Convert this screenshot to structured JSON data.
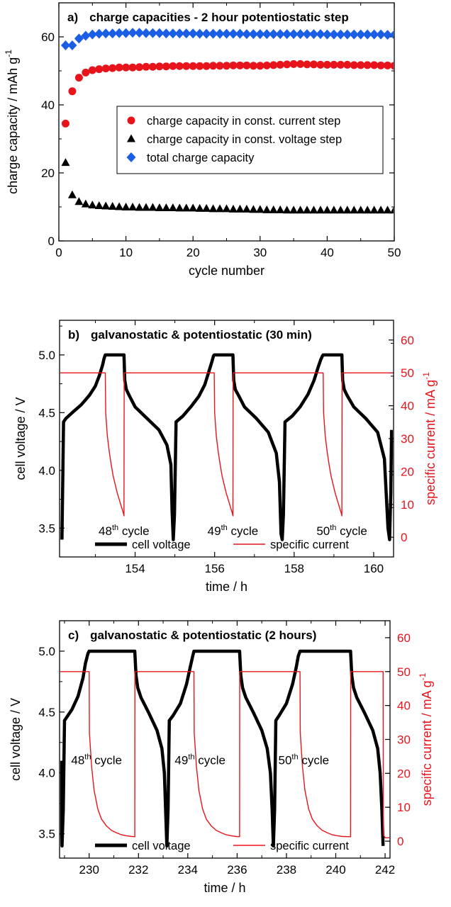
{
  "chart_data": [
    {
      "type": "scatter",
      "panel_label": "a)",
      "title": "charge capacities - 2 hour potentiostatic step",
      "xlabel": "cycle number",
      "ylabel": "charge capacity / mAh g",
      "ylabel_sup": "-1",
      "xlim": [
        0,
        50
      ],
      "ylim": [
        0,
        70
      ],
      "xticks": [
        0,
        10,
        20,
        30,
        40,
        50
      ],
      "yticks": [
        0,
        20,
        40,
        60
      ],
      "legend_position": "center-right",
      "grid": false,
      "series": [
        {
          "name": "charge capacity in const. current step",
          "marker": "circle",
          "color": "#e8141c",
          "x": [
            1,
            2,
            3,
            4,
            5,
            6,
            7,
            8,
            9,
            10,
            11,
            12,
            13,
            14,
            15,
            16,
            17,
            18,
            19,
            20,
            21,
            22,
            23,
            24,
            25,
            26,
            27,
            28,
            29,
            30,
            31,
            32,
            33,
            34,
            35,
            36,
            37,
            38,
            39,
            40,
            41,
            42,
            43,
            44,
            45,
            46,
            47,
            48,
            49,
            50
          ],
          "y": [
            34.5,
            44,
            48,
            49.5,
            50.2,
            50.5,
            50.7,
            50.8,
            51,
            51,
            51,
            51.1,
            51.2,
            51.2,
            51.3,
            51.3,
            51.4,
            51.4,
            51.4,
            51.4,
            51.4,
            51.4,
            51.5,
            51.5,
            51.5,
            51.6,
            51.6,
            51.6,
            51.5,
            51.5,
            51.6,
            51.7,
            51.8,
            51.9,
            52,
            52,
            51.9,
            51.9,
            51.8,
            51.8,
            51.8,
            51.8,
            51.8,
            51.7,
            51.7,
            51.7,
            51.7,
            51.6,
            51.6,
            51.5
          ]
        },
        {
          "name": "charge capacity in const. voltage step",
          "marker": "triangle",
          "color": "#000000",
          "x": [
            1,
            2,
            3,
            4,
            5,
            6,
            7,
            8,
            9,
            10,
            11,
            12,
            13,
            14,
            15,
            16,
            17,
            18,
            19,
            20,
            21,
            22,
            23,
            24,
            25,
            26,
            27,
            28,
            29,
            30,
            31,
            32,
            33,
            34,
            35,
            36,
            37,
            38,
            39,
            40,
            41,
            42,
            43,
            44,
            45,
            46,
            47,
            48,
            49,
            50
          ],
          "y": [
            23,
            13.5,
            11.5,
            10.8,
            10.5,
            10.3,
            10.2,
            10.1,
            10,
            9.9,
            9.9,
            9.8,
            9.8,
            9.8,
            9.7,
            9.7,
            9.7,
            9.6,
            9.6,
            9.6,
            9.5,
            9.5,
            9.4,
            9.4,
            9.4,
            9.3,
            9.3,
            9.3,
            9.2,
            9.2,
            9.1,
            9.1,
            9.1,
            9,
            9,
            9,
            9,
            9,
            9,
            9,
            9,
            9,
            9,
            9,
            9,
            9,
            9,
            9,
            9,
            9
          ]
        },
        {
          "name": "total charge capacity",
          "marker": "diamond",
          "color": "#1a5ee6",
          "x": [
            1,
            2,
            3,
            4,
            5,
            6,
            7,
            8,
            9,
            10,
            11,
            12,
            13,
            14,
            15,
            16,
            17,
            18,
            19,
            20,
            21,
            22,
            23,
            24,
            25,
            26,
            27,
            28,
            29,
            30,
            31,
            32,
            33,
            34,
            35,
            36,
            37,
            38,
            39,
            40,
            41,
            42,
            43,
            44,
            45,
            46,
            47,
            48,
            49,
            50
          ],
          "y": [
            57.5,
            57.5,
            59.5,
            60.3,
            60.7,
            60.9,
            61,
            61,
            61.1,
            61.1,
            61.2,
            61.2,
            61.1,
            61.1,
            61.1,
            61,
            61,
            61,
            61,
            61,
            60.9,
            60.9,
            60.9,
            60.9,
            60.9,
            60.9,
            60.9,
            60.8,
            60.8,
            60.8,
            60.8,
            60.8,
            60.8,
            60.8,
            60.8,
            60.8,
            60.8,
            60.8,
            60.8,
            60.7,
            60.7,
            60.7,
            60.7,
            60.7,
            60.7,
            60.7,
            60.7,
            60.7,
            60.6,
            60.6
          ]
        }
      ]
    },
    {
      "type": "line",
      "panel_label": "b)",
      "title": "galvanostatic & potentiostatic (30 min)",
      "xlabel": "time / h",
      "ylabel": "cell voltage / V",
      "y2label": "specific current / mA g",
      "y2label_sup": "-1",
      "xlim": [
        152.1,
        160.5
      ],
      "ylim": [
        3.25,
        5.3
      ],
      "y2lim": [
        -6,
        66
      ],
      "xticks": [
        154,
        156,
        158,
        160
      ],
      "yticks": [
        3.5,
        4.0,
        4.5,
        5.0
      ],
      "y2ticks": [
        0,
        10,
        20,
        30,
        40,
        50,
        60
      ],
      "legend_position": "bottom",
      "grid": false,
      "cycle_labels": [
        {
          "num": "48",
          "sup": "th",
          "text": " cycle",
          "x": 153.72,
          "y": 3.44
        },
        {
          "num": "49",
          "sup": "th",
          "text": " cycle",
          "x": 156.46,
          "y": 3.44
        },
        {
          "num": "50",
          "sup": "th",
          "text": " cycle",
          "x": 159.2,
          "y": 3.44
        }
      ],
      "series": [
        {
          "name": "cell voltage",
          "axis": "left",
          "color": "#000000",
          "x": [
            152.16,
            152.2,
            152.26,
            152.42,
            152.65,
            152.85,
            153.0,
            153.1,
            153.18,
            153.22,
            153.25,
            153.72,
            153.74,
            153.78,
            153.85,
            154.0,
            154.3,
            154.6,
            154.8,
            154.9,
            154.93,
            154.96,
            154.99,
            155.03,
            155.2,
            155.4,
            155.6,
            155.75,
            155.85,
            155.93,
            155.97,
            155.99,
            156.46,
            156.48,
            156.52,
            156.6,
            156.75,
            157.05,
            157.35,
            157.55,
            157.63,
            157.67,
            157.7,
            157.73,
            157.77,
            157.95,
            158.15,
            158.35,
            158.5,
            158.6,
            158.67,
            158.71,
            158.73,
            159.2,
            159.22,
            159.26,
            159.33,
            159.5,
            159.8,
            160.1,
            160.27,
            160.36,
            160.4,
            160.43,
            160.45
          ],
          "y": [
            3.4,
            4.42,
            4.45,
            4.5,
            4.57,
            4.65,
            4.73,
            4.82,
            4.91,
            4.97,
            5.0,
            5.0,
            4.78,
            4.7,
            4.65,
            4.55,
            4.45,
            4.35,
            4.22,
            4.05,
            3.65,
            3.4,
            3.62,
            4.42,
            4.47,
            4.55,
            4.64,
            4.74,
            4.85,
            4.94,
            4.99,
            5.0,
            5.0,
            4.78,
            4.7,
            4.65,
            4.55,
            4.45,
            4.33,
            4.15,
            3.9,
            3.45,
            3.4,
            3.62,
            4.42,
            4.47,
            4.55,
            4.66,
            4.78,
            4.89,
            4.96,
            4.99,
            5.0,
            5.0,
            4.78,
            4.7,
            4.65,
            4.55,
            4.45,
            4.33,
            4.1,
            3.5,
            3.4,
            3.8,
            4.35
          ]
        },
        {
          "name": "specific current",
          "axis": "right",
          "color": "#e8141c",
          "x": [
            152.1,
            153.25,
            153.26,
            153.3,
            153.35,
            153.4,
            153.45,
            153.5,
            153.55,
            153.6,
            153.65,
            153.7,
            153.72,
            153.725,
            153.73,
            155.99,
            156.0,
            156.04,
            156.09,
            156.14,
            156.19,
            156.24,
            156.29,
            156.34,
            156.39,
            156.44,
            156.46,
            156.465,
            156.47,
            158.73,
            158.74,
            158.78,
            158.83,
            158.88,
            158.93,
            158.98,
            159.03,
            159.08,
            159.13,
            159.18,
            159.2,
            159.205,
            159.21,
            160.5
          ],
          "y": [
            50,
            50,
            38,
            31,
            26,
            22,
            18.5,
            16,
            13.5,
            11.5,
            9.5,
            7.5,
            6.5,
            50,
            50,
            50,
            38,
            31,
            26,
            22,
            18.5,
            16,
            13.5,
            11.5,
            9.5,
            7.5,
            6.5,
            50,
            50,
            50,
            38,
            31,
            26,
            22,
            18.5,
            16,
            13.5,
            11.5,
            9.5,
            7.5,
            6.5,
            50,
            50,
            50
          ]
        }
      ]
    },
    {
      "type": "line",
      "panel_label": "c)",
      "title": "galvanostatic & potentiostatic (2 hours)",
      "xlabel": "time / h",
      "ylabel": "cell voltage / V",
      "y2label": "specific current / mA g",
      "y2label_sup": "-1",
      "xlim": [
        228.8,
        242.2
      ],
      "ylim": [
        3.3,
        5.25
      ],
      "y2lim": [
        -5,
        65
      ],
      "xticks": [
        230,
        232,
        234,
        236,
        238,
        240,
        242
      ],
      "yticks": [
        3.5,
        4.0,
        4.5,
        5.0
      ],
      "y2ticks": [
        0,
        10,
        20,
        30,
        40,
        50,
        60
      ],
      "legend_position": "bottom",
      "grid": false,
      "cycle_labels": [
        {
          "num": "48",
          "sup": "th",
          "text": " cycle",
          "x": 230.3,
          "y": 4.07
        },
        {
          "num": "49",
          "sup": "th",
          "text": " cycle",
          "x": 234.5,
          "y": 4.07
        },
        {
          "num": "50",
          "sup": "th",
          "text": " cycle",
          "x": 238.7,
          "y": 4.07
        }
      ],
      "series": [
        {
          "name": "cell voltage",
          "axis": "left",
          "color": "#000000",
          "x": [
            228.85,
            228.9,
            228.95,
            229.0,
            229.1,
            229.3,
            229.55,
            229.75,
            229.85,
            229.95,
            230.0,
            231.85,
            231.9,
            231.97,
            232.1,
            232.4,
            232.75,
            232.95,
            233.05,
            233.1,
            233.15,
            233.2,
            233.25,
            233.4,
            233.7,
            233.95,
            234.1,
            234.2,
            234.25,
            236.1,
            236.15,
            236.22,
            236.35,
            236.65,
            237.0,
            237.22,
            237.35,
            237.42,
            237.47,
            237.52,
            237.57,
            237.7,
            238.0,
            238.25,
            238.4,
            238.48,
            238.55,
            240.6,
            240.65,
            240.72,
            240.85,
            241.15,
            241.5,
            241.7,
            241.8,
            241.87,
            241.92
          ],
          "y": [
            4.1,
            3.4,
            3.7,
            4.43,
            4.46,
            4.52,
            4.63,
            4.78,
            4.9,
            4.98,
            5.0,
            5.0,
            4.8,
            4.7,
            4.62,
            4.5,
            4.35,
            4.2,
            4.0,
            3.7,
            3.4,
            3.7,
            4.43,
            4.47,
            4.57,
            4.73,
            4.87,
            4.96,
            5.0,
            5.0,
            4.8,
            4.7,
            4.62,
            4.5,
            4.35,
            4.2,
            4.0,
            3.7,
            3.4,
            3.7,
            4.43,
            4.47,
            4.57,
            4.73,
            4.87,
            4.96,
            5.0,
            5.0,
            4.8,
            4.7,
            4.62,
            4.5,
            4.35,
            4.2,
            4.0,
            3.7,
            3.4
          ]
        },
        {
          "name": "specific current",
          "axis": "right",
          "color": "#e8141c",
          "x": [
            228.8,
            230.0,
            230.01,
            230.1,
            230.2,
            230.35,
            230.5,
            230.7,
            230.9,
            231.1,
            231.3,
            231.5,
            231.7,
            231.85,
            231.855,
            231.86,
            234.25,
            234.26,
            234.35,
            234.45,
            234.6,
            234.75,
            234.95,
            235.15,
            235.35,
            235.55,
            235.75,
            235.95,
            236.1,
            236.105,
            236.11,
            238.55,
            238.56,
            238.65,
            238.75,
            238.9,
            239.05,
            239.25,
            239.45,
            239.65,
            239.85,
            240.05,
            240.25,
            240.6,
            240.605,
            240.61,
            241.92,
            241.93,
            242.0,
            242.2
          ],
          "y": [
            50,
            50,
            32,
            22,
            15,
            9.5,
            6.5,
            4.5,
            3.2,
            2.5,
            1.9,
            1.6,
            1.4,
            1.3,
            50,
            50,
            50,
            32,
            22,
            15,
            9.5,
            6.5,
            4.5,
            3.2,
            2.5,
            1.9,
            1.6,
            1.4,
            1.3,
            50,
            50,
            50,
            32,
            22,
            15,
            9.5,
            6.5,
            4.5,
            3.2,
            2.5,
            1.9,
            1.6,
            1.4,
            1.3,
            50,
            50,
            50,
            2,
            1,
            1
          ]
        }
      ]
    }
  ]
}
